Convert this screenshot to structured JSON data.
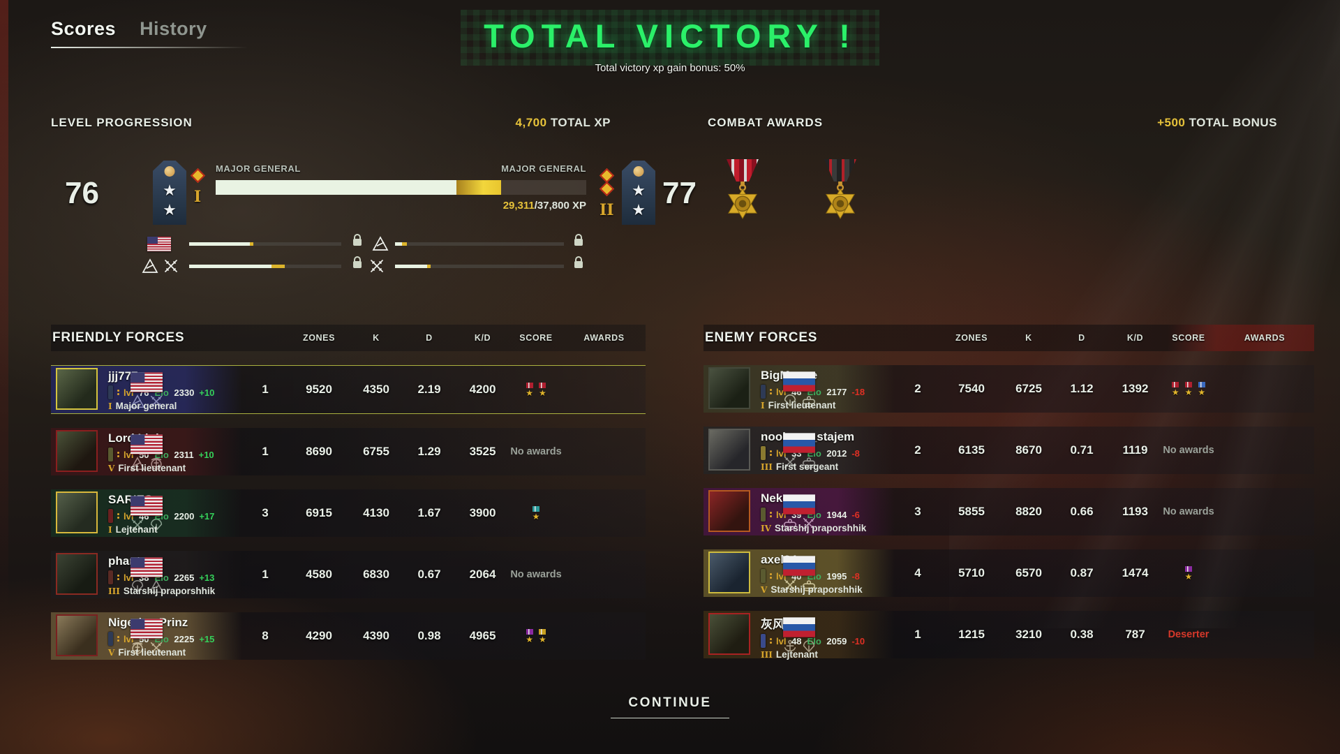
{
  "tabs": {
    "scores": "Scores",
    "history": "History"
  },
  "victory": {
    "title": "TOTAL VICTORY !",
    "subtitle": "Total victory xp gain bonus: 50%"
  },
  "level_progression": {
    "heading": "LEVEL PROGRESSION",
    "total_xp_value": "4,700",
    "total_xp_label": " TOTAL XP",
    "current_level": "76",
    "next_level": "77",
    "current_rank": "MAJOR GENERAL",
    "next_rank": "MAJOR GENERAL",
    "current_numeral": "I",
    "next_numeral": "II",
    "xp_current": "29,311",
    "xp_total": "/37,800 XP",
    "bar": {
      "white_pct": 65,
      "gold_pct": 12
    },
    "unlock_bars": [
      {
        "icon": "us-flag",
        "white_pct": 40,
        "gold_pct": 2,
        "locked": true
      },
      {
        "icon": "mountain",
        "white_pct": 4,
        "gold_pct": 3,
        "locked": true
      },
      {
        "icon": "mountain+swords",
        "white_pct": 54,
        "gold_pct": 9,
        "locked": true
      },
      {
        "icon": "swords",
        "white_pct": 19,
        "gold_pct": 2,
        "locked": true
      }
    ]
  },
  "combat_awards": {
    "heading": "COMBAT AWARDS",
    "bonus_value": "+500",
    "bonus_label": " TOTAL BONUS",
    "medals": [
      {
        "name": "scales-star-medal",
        "ribbon": [
          "#8a1020",
          "#d8d8d8",
          "#c01c2c"
        ]
      },
      {
        "name": "skull-star-medal",
        "ribbon": [
          "#222222",
          "#b02028",
          "#3a3a3a"
        ]
      }
    ]
  },
  "columns": [
    "ZONES",
    "K",
    "D",
    "K/D",
    "SCORE",
    "AWARDS"
  ],
  "friendly": {
    "title": "FRIENDLY FORCES",
    "rows": [
      {
        "name": "jjj777",
        "lvl": "76",
        "elo": "2330",
        "delta": "+10",
        "neg": false,
        "rank": "Major general",
        "tier": "I",
        "flag": "us",
        "badges": [
          "mountain",
          "swords"
        ],
        "zones": "1",
        "k": "9520",
        "d": "4350",
        "kd": "2.19",
        "score": "4200",
        "awards": {
          "medals": [
            "#b02030",
            "#b02030"
          ]
        },
        "hl": true,
        "card": "rgba(52,56,140,.55)",
        "chip": "#2e3a55",
        "av": [
          "#5a6647",
          "#232a1c"
        ],
        "avb": "#d6c53e"
      },
      {
        "name": "Lord Link",
        "lvl": "50",
        "elo": "2311",
        "delta": "+10",
        "neg": false,
        "rank": "First lieutenant",
        "tier": "V",
        "flag": "us",
        "badges": [
          "mountain",
          "marine"
        ],
        "zones": "1",
        "k": "8690",
        "d": "6755",
        "kd": "1.29",
        "score": "3525",
        "awards": {
          "text": "No awards"
        },
        "hl": false,
        "card": "rgba(92,30,30,.5)",
        "chip": "#5a5a30",
        "av": [
          "#4a5238",
          "#1e1710"
        ],
        "avb": "#8a1f1f"
      },
      {
        "name": "SARIES",
        "lvl": "46",
        "elo": "2200",
        "delta": "+17",
        "neg": false,
        "rank": "Lejtenant",
        "tier": "I",
        "flag": "us",
        "badges": [
          "swords",
          "airborne"
        ],
        "zones": "3",
        "k": "6915",
        "d": "4130",
        "kd": "1.67",
        "score": "3900",
        "awards": {
          "medals": [
            "#2a9a9a"
          ]
        },
        "hl": false,
        "card": "rgba(30,72,45,.5)",
        "chip": "#6a2020",
        "av": [
          "#55604a",
          "#242b20"
        ],
        "avb": "#d8b83c"
      },
      {
        "name": "phantasy",
        "lvl": "38",
        "elo": "2265",
        "delta": "+13",
        "neg": false,
        "rank": "Starshij praporshhik",
        "tier": "III",
        "flag": "us",
        "badges": [
          "airborne",
          "mountain"
        ],
        "zones": "1",
        "k": "4580",
        "d": "6830",
        "kd": "0.67",
        "score": "2064",
        "awards": {
          "text": "No awards"
        },
        "hl": false,
        "card": "rgba(42,38,36,.5)",
        "chip": "#5a2a24",
        "av": [
          "#3c4434",
          "#171b13"
        ],
        "avb": "#8a2a22"
      },
      {
        "name": "Nigerian Prinz",
        "lvl": "50",
        "elo": "2225",
        "delta": "+15",
        "neg": false,
        "rank": "First lieutenant",
        "tier": "V",
        "flag": "us",
        "badges": [
          "marine",
          "swords"
        ],
        "zones": "8",
        "k": "4290",
        "d": "4390",
        "kd": "0.98",
        "score": "4965",
        "awards": {
          "medals": [
            "#8a2aa0",
            "#c8a020"
          ]
        },
        "hl": false,
        "card": "rgba(152,126,76,.55)",
        "chip": "#2e3a55",
        "av": [
          "#8a7a5a",
          "#3a2f1e"
        ],
        "avb": "#7a2020"
      }
    ]
  },
  "enemy": {
    "title": "ENEMY FORCES",
    "rows": [
      {
        "name": "BigMouse",
        "lvl": "46",
        "elo": "2177",
        "delta": "-18",
        "neg": true,
        "rank": "First lieutenant",
        "tier": "I",
        "flag": "ru",
        "badges": [
          "airborne",
          "armor"
        ],
        "zones": "2",
        "k": "7540",
        "d": "6725",
        "kd": "1.12",
        "score": "1392",
        "awards": {
          "medals": [
            "#b02030",
            "#b02030",
            "#3a6ac0"
          ]
        },
        "hl": false,
        "card": "rgba(96,96,56,.45)",
        "chip": "#2e3a55",
        "av": [
          "#4a5240",
          "#1b2015"
        ],
        "avb": "#44483a"
      },
      {
        "name": "noob_so_stajem",
        "lvl": "33",
        "elo": "2012",
        "delta": "-8",
        "neg": true,
        "rank": "First sergeant",
        "tier": "III",
        "flag": "ru",
        "badges": [
          "swords",
          "armor"
        ],
        "zones": "2",
        "k": "6135",
        "d": "8670",
        "kd": "0.71",
        "score": "1119",
        "awards": {
          "text": "No awards"
        },
        "hl": false,
        "card": "rgba(56,54,52,.5)",
        "chip": "#8a7a30",
        "av": [
          "#6a6a62",
          "#26262a"
        ],
        "avb": "#5a5a55"
      },
      {
        "name": "Neko",
        "lvl": "39",
        "elo": "1944",
        "delta": "-6",
        "neg": true,
        "rank": "Starshij praporshhik",
        "tier": "IV",
        "flag": "ru",
        "badges": [
          "armor",
          "swords"
        ],
        "zones": "3",
        "k": "5855",
        "d": "8820",
        "kd": "0.66",
        "score": "1193",
        "awards": {
          "text": "No awards"
        },
        "hl": false,
        "card": "rgba(122,30,110,.45)",
        "chip": "#5a5a30",
        "av": [
          "#8a2525",
          "#33140f"
        ],
        "avb": "#b55a20"
      },
      {
        "name": "axel34",
        "lvl": "40",
        "elo": "1995",
        "delta": "-8",
        "neg": true,
        "rank": "Starshij praporshhik",
        "tier": "V",
        "flag": "ru",
        "badges": [
          "swords",
          "armor"
        ],
        "zones": "4",
        "k": "5710",
        "d": "6570",
        "kd": "0.87",
        "score": "1474",
        "awards": {
          "medals": [
            "#8a2aa0"
          ]
        },
        "hl": false,
        "card": "rgba(162,142,62,.5)",
        "chip": "#5a5a30",
        "av": [
          "#4a5a6a",
          "#1a2430"
        ],
        "avb": "#cdbb3e"
      },
      {
        "name": "灰风",
        "lvl": "48",
        "elo": "2059",
        "delta": "-10",
        "neg": true,
        "rank": "Lejtenant",
        "tier": "III",
        "flag": "ru",
        "badges": [
          "anchor",
          "airborne"
        ],
        "zones": "1",
        "k": "1215",
        "d": "3210",
        "kd": "0.38",
        "score": "787",
        "awards": {
          "text": "Deserter",
          "danger": true
        },
        "hl": false,
        "card": "rgba(92,66,26,.5)",
        "chip": "#3a4a8a",
        "av": [
          "#4a5038",
          "#1f1d12"
        ],
        "avb": "#a82222"
      }
    ]
  },
  "labels": {
    "lvl": "lvl",
    "elo": "Elo"
  },
  "continue_label": "CONTINUE"
}
